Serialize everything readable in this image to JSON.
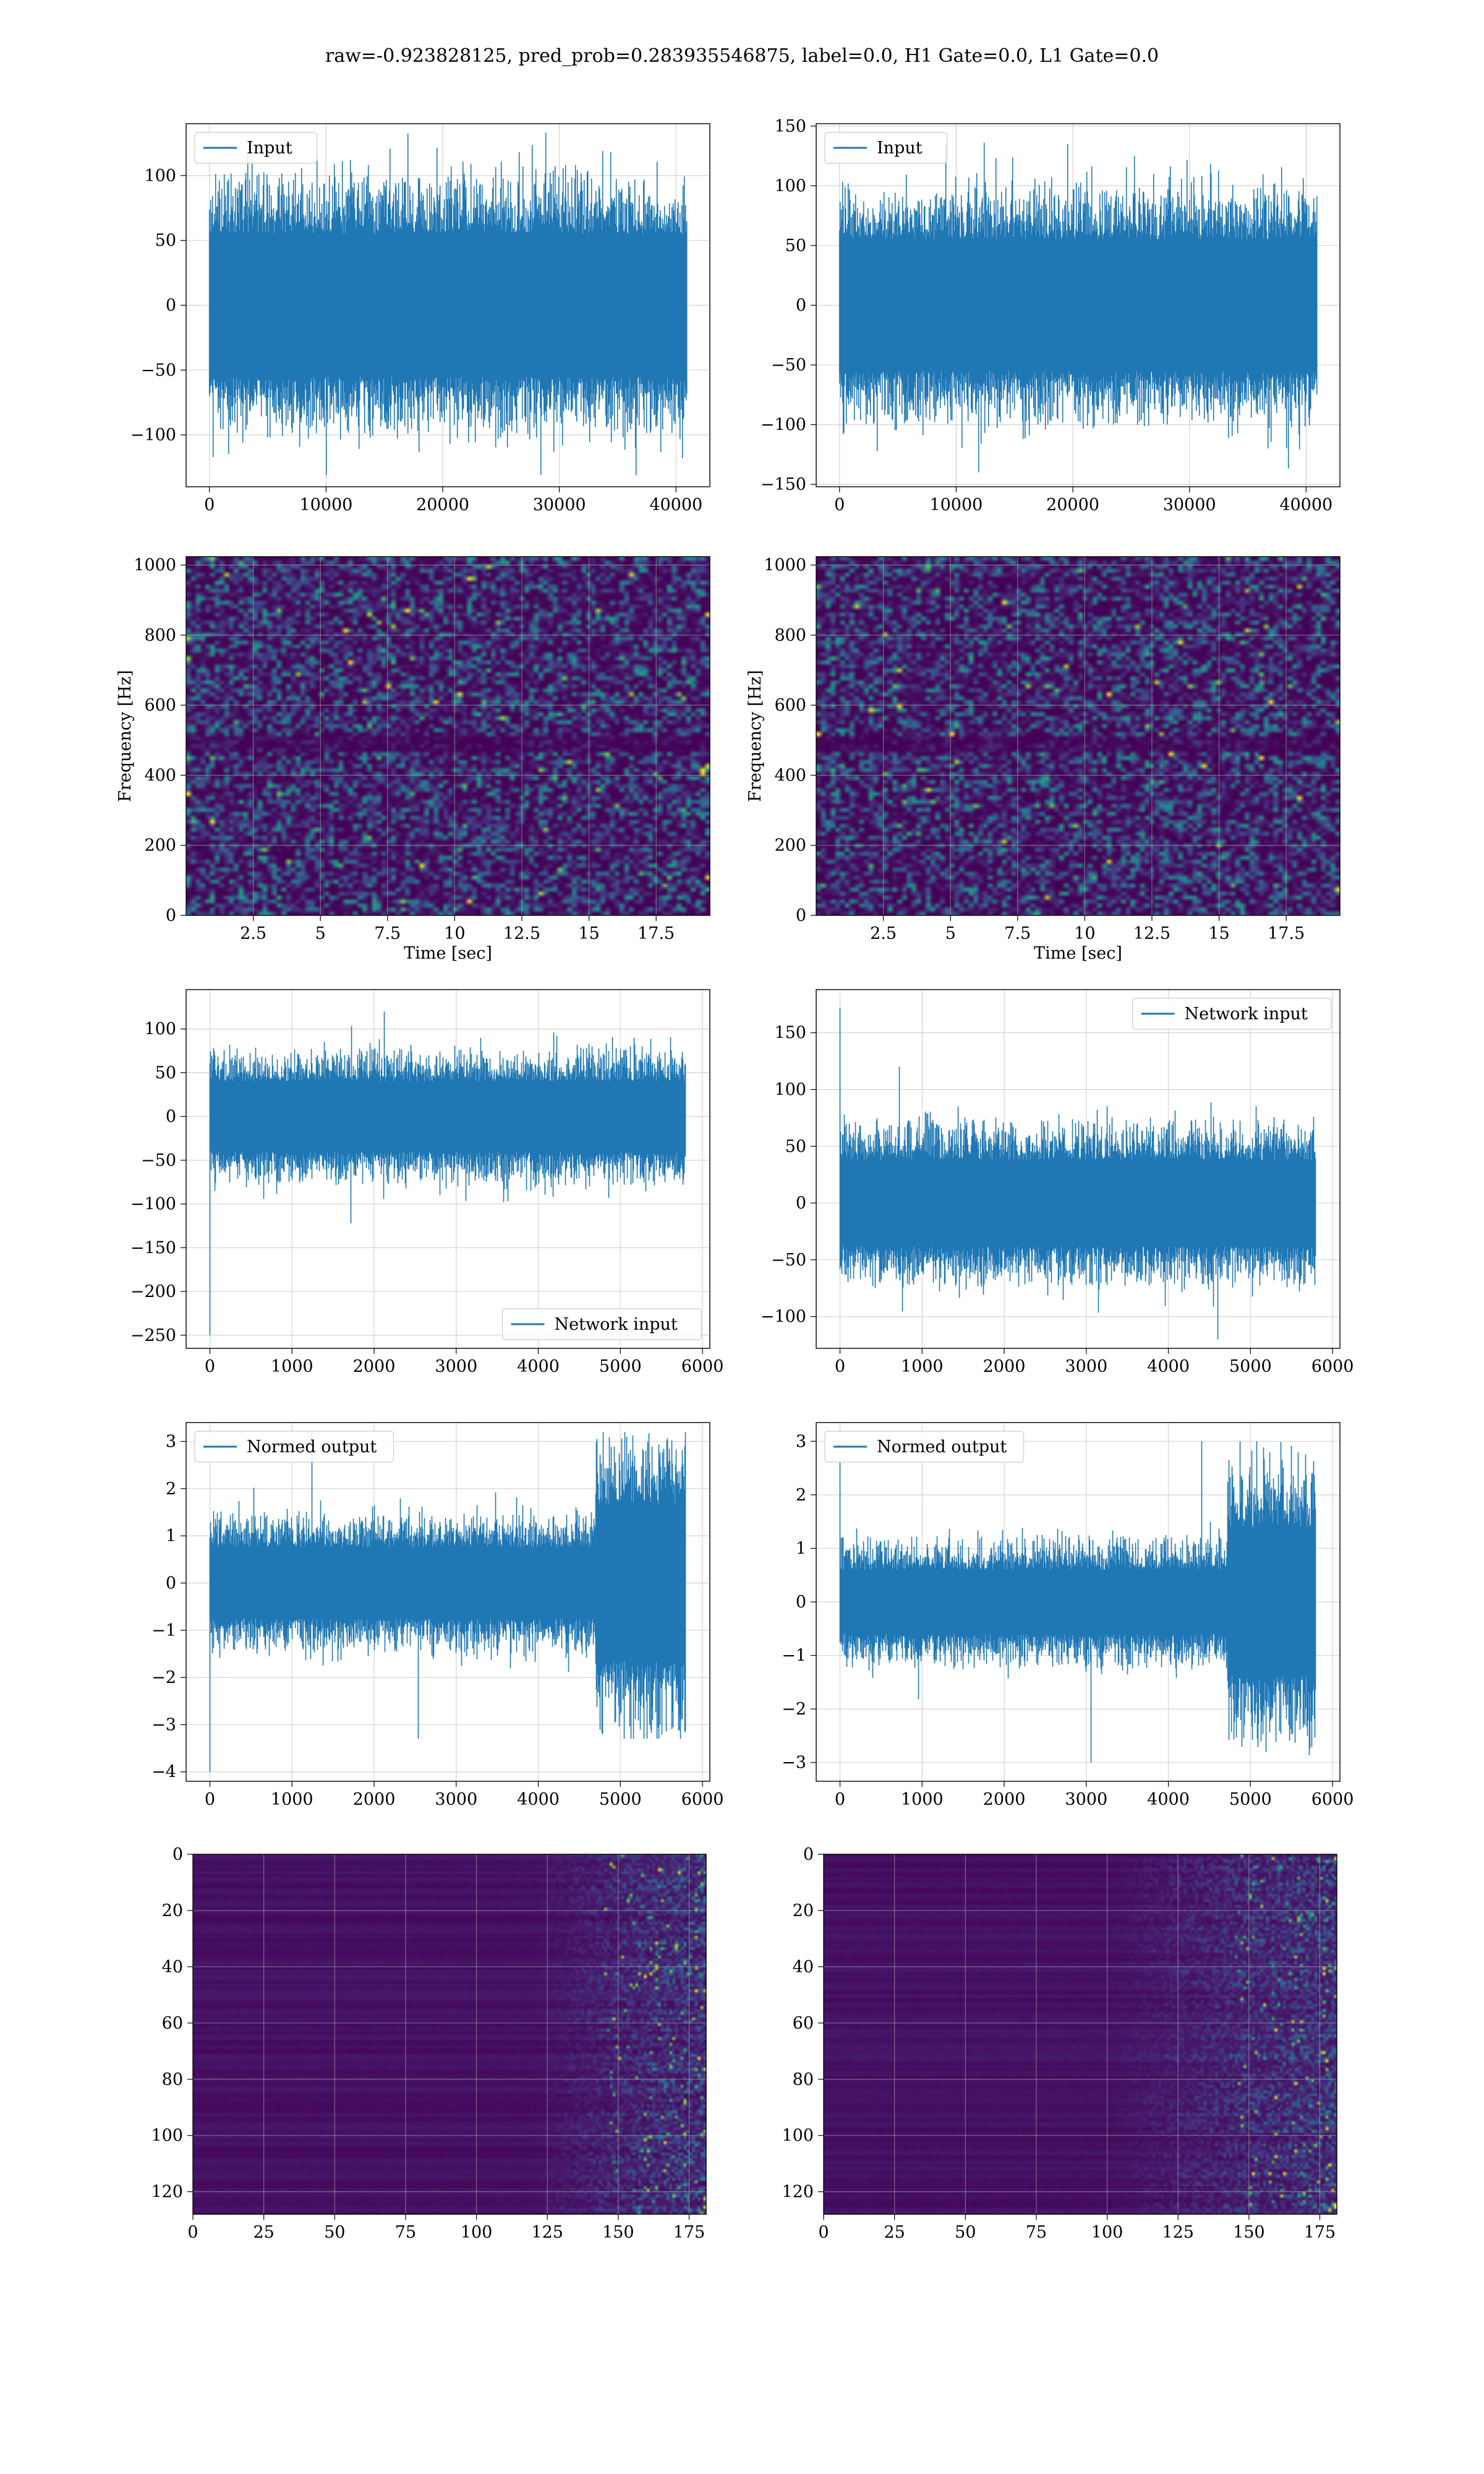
{
  "suptitle": "raw=-0.923828125, pred_prob=0.283935546875, label=0.0, H1 Gate=0.0, L1 Gate=0.0",
  "colors": {
    "line": "#1f77b4",
    "grid": "#b0b0b0",
    "viridis_low": "#440154",
    "viridis_high": "#fde725"
  },
  "chart_data": [
    {
      "id": "r1c1",
      "type": "line",
      "title": "",
      "xlim": [
        -2000,
        42900
      ],
      "ylim": [
        -140,
        140
      ],
      "xticks": [
        0,
        10000,
        20000,
        30000,
        40000
      ],
      "yticks": [
        -100,
        -50,
        0,
        50,
        100
      ],
      "xlabel": "",
      "ylabel": "",
      "legend": {
        "label": "Input",
        "loc": "upper-left"
      },
      "signal": {
        "kind": "noise",
        "n": 40960,
        "x_step": 1,
        "core": 55,
        "peaks": 95,
        "max": 133,
        "min": -131,
        "first_spike": null,
        "burst": null
      }
    },
    {
      "id": "r1c2",
      "type": "line",
      "title": "",
      "xlim": [
        -2000,
        42900
      ],
      "ylim": [
        -152,
        152
      ],
      "xticks": [
        0,
        10000,
        20000,
        30000,
        40000
      ],
      "yticks": [
        -150,
        -100,
        -50,
        0,
        50,
        100,
        150
      ],
      "xlabel": "",
      "ylabel": "",
      "legend": {
        "label": "Input",
        "loc": "upper-left"
      },
      "signal": {
        "kind": "noise",
        "n": 40960,
        "x_step": 1,
        "core": 55,
        "peaks": 95,
        "max": 136,
        "min": -140,
        "first_spike": null,
        "burst": null
      }
    },
    {
      "id": "r2c1",
      "type": "heatmap",
      "title": "",
      "xlim": [
        0,
        19.5
      ],
      "ylim": [
        0,
        1024
      ],
      "xticks": [
        2.5,
        5.0,
        7.5,
        10.0,
        12.5,
        15.0,
        17.5
      ],
      "yticks": [
        0,
        200,
        400,
        600,
        800,
        1000
      ],
      "xlabel": "Time [sec]",
      "ylabel": "Frequency [Hz]",
      "colormap": "viridis",
      "description_values": {
        "rows": 90,
        "cols": 110,
        "dark_band_hz": [
          470,
          520
        ]
      }
    },
    {
      "id": "r2c2",
      "type": "heatmap",
      "title": "",
      "xlim": [
        0,
        19.5
      ],
      "ylim": [
        0,
        1024
      ],
      "xticks": [
        2.5,
        5.0,
        7.5,
        10.0,
        12.5,
        15.0,
        17.5
      ],
      "yticks": [
        0,
        200,
        400,
        600,
        800,
        1000
      ],
      "xlabel": "Time [sec]",
      "ylabel": "Frequency [Hz]",
      "colormap": "viridis",
      "description_values": {
        "rows": 90,
        "cols": 110,
        "dark_band_hz": [
          470,
          520
        ]
      }
    },
    {
      "id": "r3c1",
      "type": "line",
      "title": "",
      "xlim": [
        -290,
        6090
      ],
      "ylim": [
        -265,
        145
      ],
      "xticks": [
        0,
        1000,
        2000,
        3000,
        4000,
        5000,
        6000
      ],
      "yticks": [
        -250,
        -200,
        -150,
        -100,
        -50,
        0,
        50,
        100
      ],
      "xlabel": "",
      "ylabel": "",
      "legend": {
        "label": "Network input",
        "loc": "lower-right"
      },
      "signal": {
        "kind": "noise",
        "n": 5800,
        "x_step": 1,
        "core": 40,
        "peaks": 75,
        "max": 120,
        "min": -122,
        "first_spike": -250,
        "burst": null
      }
    },
    {
      "id": "r3c2",
      "type": "line",
      "title": "",
      "xlim": [
        -290,
        6090
      ],
      "ylim": [
        -128,
        188
      ],
      "xticks": [
        0,
        1000,
        2000,
        3000,
        4000,
        5000,
        6000
      ],
      "yticks": [
        -100,
        -50,
        0,
        50,
        100,
        150
      ],
      "xlabel": "",
      "ylabel": "",
      "legend": {
        "label": "Network input",
        "loc": "upper-right"
      },
      "signal": {
        "kind": "noise",
        "n": 5800,
        "x_step": 1,
        "core": 38,
        "peaks": 70,
        "max": 120,
        "min": -120,
        "first_spike": 172,
        "burst": null
      }
    },
    {
      "id": "r4c1",
      "type": "line",
      "title": "",
      "xlim": [
        -290,
        6090
      ],
      "ylim": [
        -4.2,
        3.4
      ],
      "xticks": [
        0,
        1000,
        2000,
        3000,
        4000,
        5000,
        6000
      ],
      "yticks": [
        -4,
        -3,
        -2,
        -1,
        0,
        1,
        2,
        3
      ],
      "xlabel": "",
      "ylabel": "",
      "legend": {
        "label": "Normed output",
        "loc": "upper-left"
      },
      "signal": {
        "kind": "noise",
        "n": 5800,
        "x_step": 1,
        "core": 0.75,
        "peaks": 1.4,
        "max": 3.2,
        "min": -3.3,
        "first_spike": -4.0,
        "burst": {
          "start": 4700,
          "amp": 2.2
        }
      }
    },
    {
      "id": "r4c2",
      "type": "line",
      "title": "",
      "xlim": [
        -290,
        6090
      ],
      "ylim": [
        -3.35,
        3.35
      ],
      "xticks": [
        0,
        1000,
        2000,
        3000,
        4000,
        5000,
        6000
      ],
      "yticks": [
        -3,
        -2,
        -1,
        0,
        1,
        2,
        3
      ],
      "xlabel": "",
      "ylabel": "",
      "legend": {
        "label": "Normed output",
        "loc": "upper-left"
      },
      "signal": {
        "kind": "noise",
        "n": 5800,
        "x_step": 1,
        "core": 0.6,
        "peaks": 1.2,
        "max": 3.0,
        "min": -3.0,
        "first_spike": 2.6,
        "burst": {
          "start": 4720,
          "amp": 2.3
        }
      }
    },
    {
      "id": "r5c1",
      "type": "heatmap",
      "title": "",
      "xlim": [
        0,
        181
      ],
      "ylim": [
        128,
        0
      ],
      "xticks": [
        0,
        25,
        50,
        75,
        100,
        125,
        150,
        175
      ],
      "yticks": [
        0,
        20,
        40,
        60,
        80,
        100,
        120
      ],
      "xlabel": "",
      "ylabel": "",
      "colormap": "viridis",
      "description_values": {
        "rows": 128,
        "cols": 181,
        "active_from_col": 120
      }
    },
    {
      "id": "r5c2",
      "type": "heatmap",
      "title": "",
      "xlim": [
        0,
        181
      ],
      "ylim": [
        128,
        0
      ],
      "xticks": [
        0,
        25,
        50,
        75,
        100,
        125,
        150,
        175
      ],
      "yticks": [
        0,
        20,
        40,
        60,
        80,
        100,
        120
      ],
      "xlabel": "",
      "ylabel": "",
      "colormap": "viridis",
      "description_values": {
        "rows": 128,
        "cols": 181,
        "active_from_col": 100
      }
    }
  ]
}
